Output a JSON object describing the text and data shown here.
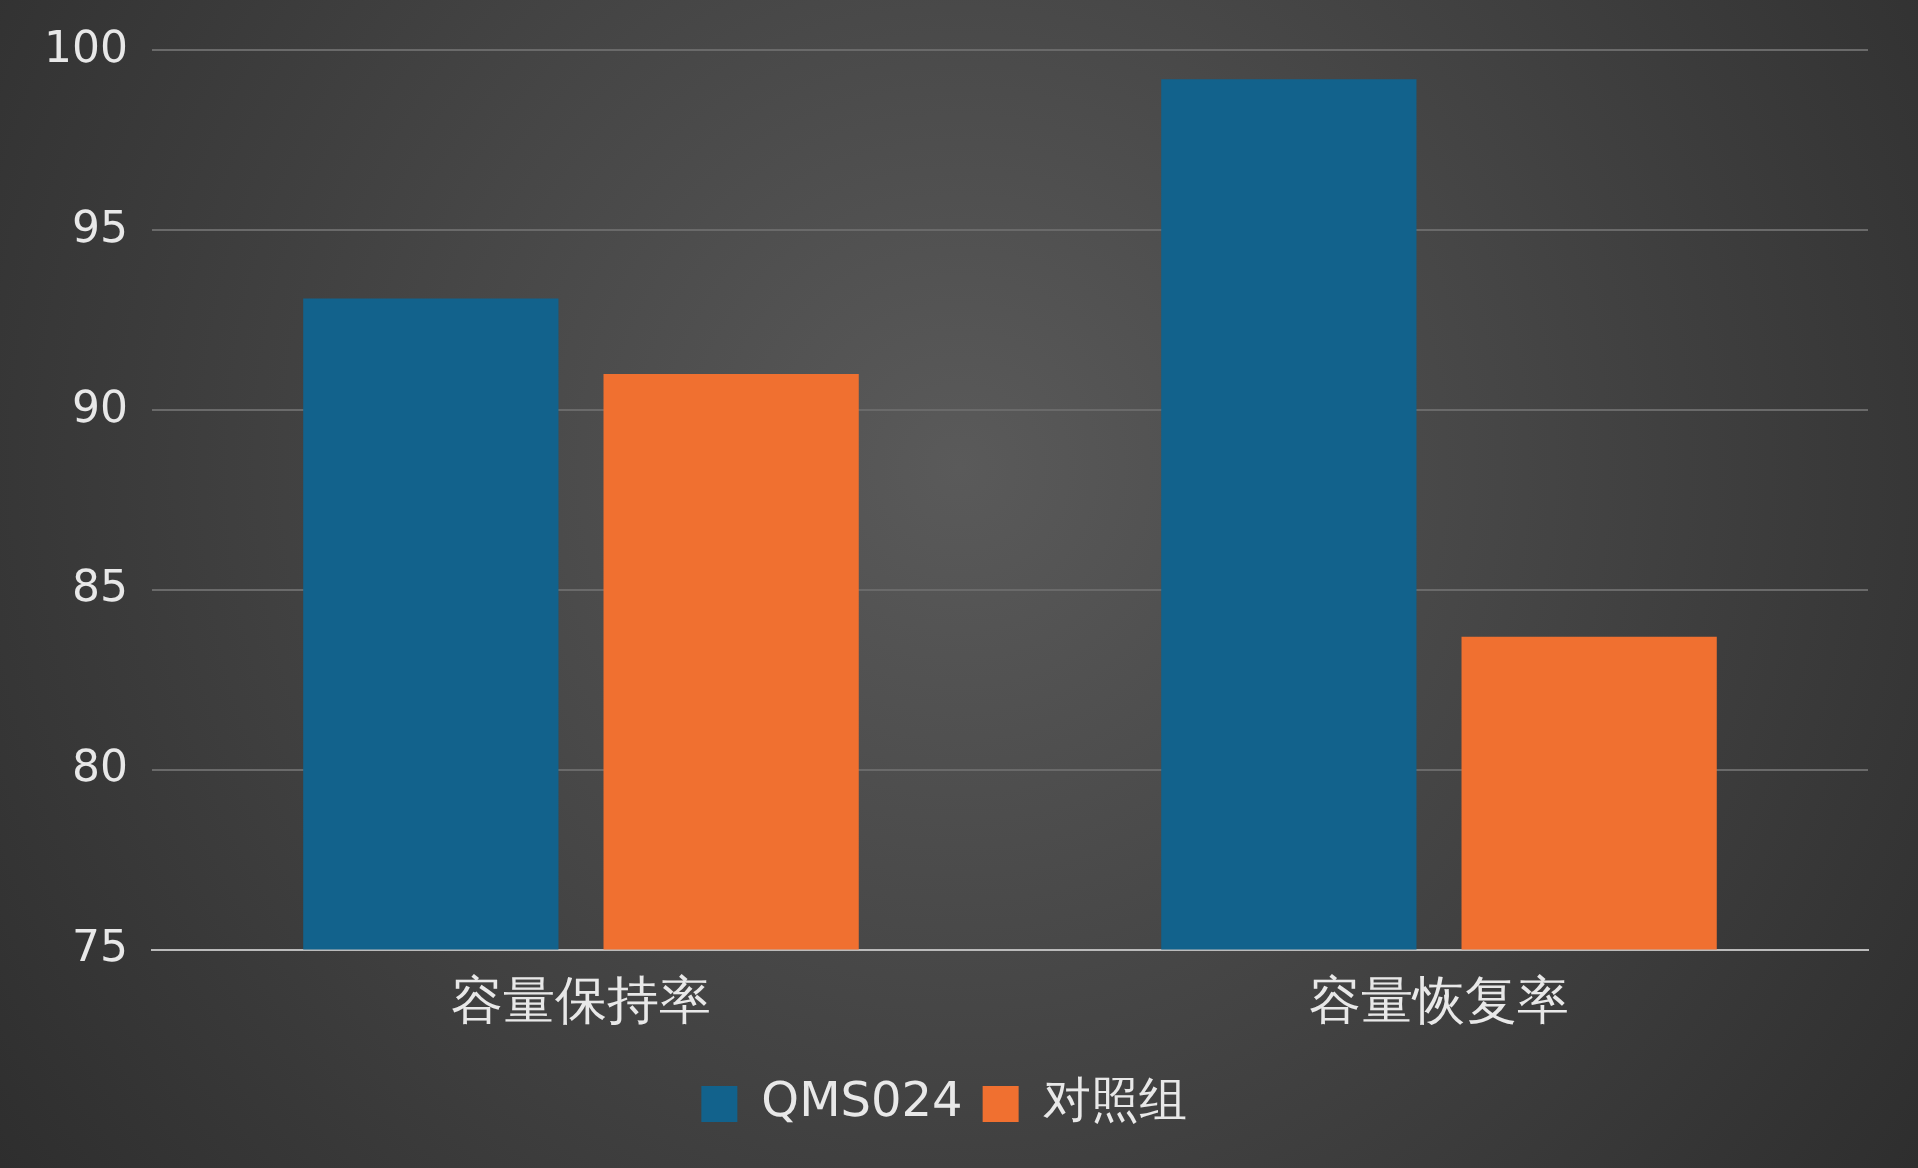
{
  "chart_data": {
    "type": "bar",
    "categories": [
      "容量保持率",
      "容量恢复率"
    ],
    "series": [
      {
        "name": "QMS024",
        "color": "#12628c",
        "values": [
          93.1,
          99.2
        ]
      },
      {
        "name": "对照组",
        "color": "#f07030",
        "values": [
          91.0,
          83.7
        ]
      }
    ],
    "ylim": [
      75,
      100
    ],
    "yticks": [
      75,
      80,
      85,
      90,
      95,
      100
    ],
    "grid": "y",
    "legend": "bottom"
  }
}
